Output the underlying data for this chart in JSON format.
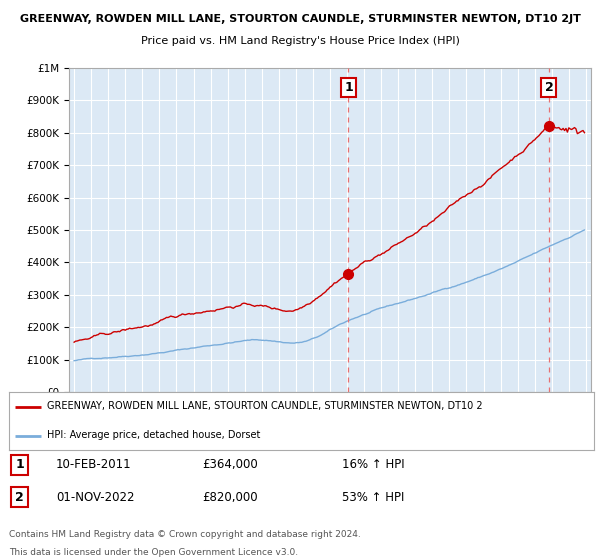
{
  "title": "GREENWAY, ROWDEN MILL LANE, STOURTON CAUNDLE, STURMINSTER NEWTON, DT10 2JT",
  "subtitle": "Price paid vs. HM Land Registry's House Price Index (HPI)",
  "hpi_label": "HPI: Average price, detached house, Dorset",
  "property_label": "GREENWAY, ROWDEN MILL LANE, STOURTON CAUNDLE, STURMINSTER NEWTON, DT10 2",
  "sale1_date": "10-FEB-2011",
  "sale1_price": 364000,
  "sale1_hpi": "16% ↑ HPI",
  "sale2_date": "01-NOV-2022",
  "sale2_price": 820000,
  "sale2_hpi": "53% ↑ HPI",
  "ylim": [
    0,
    1000000
  ],
  "start_year": 1995,
  "end_year": 2025,
  "background_color": "#dce9f5",
  "hpi_color": "#7aaddb",
  "property_color": "#cc0000",
  "vline_color": "#e87070",
  "grid_color": "#ffffff",
  "footnote1": "Contains HM Land Registry data © Crown copyright and database right 2024.",
  "footnote2": "This data is licensed under the Open Government Licence v3.0."
}
